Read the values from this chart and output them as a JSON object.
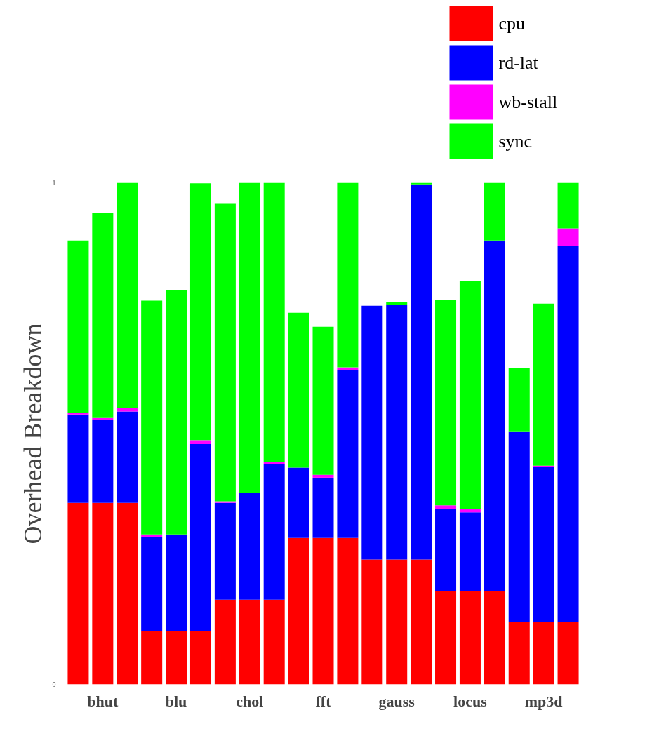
{
  "chart_data": {
    "type": "bar",
    "stacked": true,
    "ylabel": "Overhead Breakdown",
    "categories": [
      null,
      "bhut",
      null,
      null,
      "blu",
      null,
      null,
      "chol",
      null,
      null,
      "fft",
      null,
      null,
      "gauss",
      null,
      null,
      "locus",
      null,
      null,
      "mp3d",
      null
    ],
    "ylim": [
      0,
      1
    ],
    "yticks": [
      0,
      1
    ],
    "grid": false,
    "legend": "top right",
    "series": [
      {
        "name": "cpu",
        "color": "#ff0000",
        "values": [
          0.362,
          0.362,
          0.362,
          0.106,
          0.106,
          0.106,
          0.169,
          0.169,
          0.169,
          0.292,
          0.292,
          0.292,
          0.249,
          0.249,
          0.249,
          0.186,
          0.186,
          0.186,
          0.124,
          0.124,
          0.124
        ]
      },
      {
        "name": "rd-lat",
        "color": "#0000ff",
        "values": [
          0.176,
          0.166,
          0.182,
          0.187,
          0.193,
          0.373,
          0.193,
          0.213,
          0.27,
          0.14,
          0.12,
          0.334,
          0.506,
          0.508,
          0.748,
          0.164,
          0.157,
          0.699,
          0.379,
          0.309,
          0.751
        ]
      },
      {
        "name": "wb-stall",
        "color": "#ff00ff",
        "values": [
          0.003,
          0.003,
          0.007,
          0.006,
          0,
          0.008,
          0.003,
          0,
          0.004,
          0,
          0.006,
          0.006,
          0,
          0,
          0,
          0.007,
          0.006,
          0,
          0,
          0.003,
          0.034
        ]
      },
      {
        "name": "sync",
        "color": "#00ff00",
        "values": [
          0.344,
          0.408,
          0.449,
          0.466,
          0.487,
          0.512,
          0.593,
          0.618,
          0.557,
          0.309,
          0.295,
          0.368,
          0,
          0.006,
          0.003,
          0.41,
          0.455,
          0.115,
          0.127,
          0.323,
          0.091
        ]
      }
    ]
  }
}
